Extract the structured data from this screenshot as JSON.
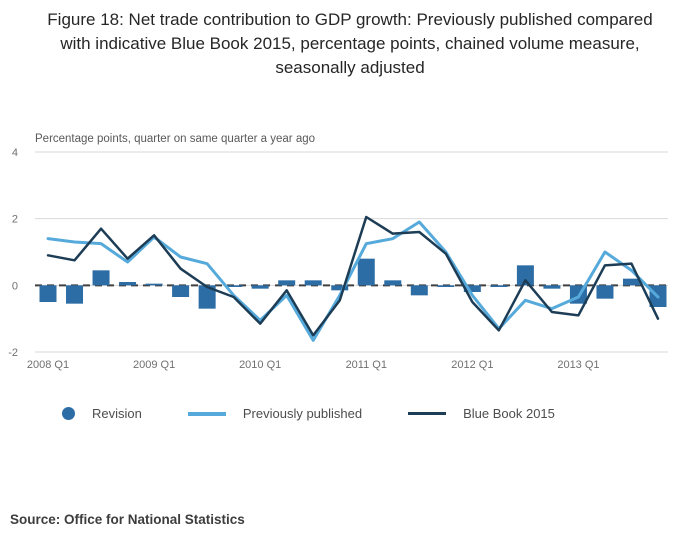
{
  "header": {
    "title": "Figure 18: Net trade contribution to GDP growth: Previously published compared with indicative Blue Book 2015, percentage points, chained volume measure, seasonally adjusted"
  },
  "footer": {
    "source": "Source: Office for National Statistics"
  },
  "chart_data": {
    "type": "combo-bar-line",
    "title": "Figure 18: Net trade contribution to GDP growth: Previously published compared with indicative Blue Book 2015, percentage points, chained volume measure, seasonally adjusted",
    "ylabel": "Percentage points, quarter on same quarter a year ago",
    "categories": [
      "2008 Q1",
      "2008 Q2",
      "2008 Q3",
      "2008 Q4",
      "2009 Q1",
      "2009 Q2",
      "2009 Q3",
      "2009 Q4",
      "2010 Q1",
      "2010 Q2",
      "2010 Q3",
      "2010 Q4",
      "2011 Q1",
      "2011 Q2",
      "2011 Q3",
      "2011 Q4",
      "2012 Q1",
      "2012 Q2",
      "2012 Q3",
      "2012 Q4",
      "2013 Q1",
      "2013 Q2",
      "2013 Q3",
      "2013 Q4"
    ],
    "series": [
      {
        "name": "Revision",
        "type": "bar",
        "color": "#2d6da5",
        "values": [
          -0.5,
          -0.55,
          0.45,
          0.1,
          0.05,
          -0.35,
          -0.7,
          -0.05,
          -0.1,
          0.15,
          0.15,
          -0.15,
          0.8,
          0.15,
          -0.3,
          -0.05,
          -0.2,
          -0.05,
          0.6,
          -0.1,
          -0.55,
          -0.4,
          0.2,
          -0.65
        ]
      },
      {
        "name": "Previously published",
        "type": "line",
        "color": "#56aadb",
        "values": [
          1.4,
          1.3,
          1.25,
          0.7,
          1.45,
          0.85,
          0.65,
          -0.3,
          -1.05,
          -0.3,
          -1.65,
          -0.3,
          1.25,
          1.4,
          1.9,
          1.0,
          -0.3,
          -1.3,
          -0.45,
          -0.7,
          -0.35,
          1.0,
          0.45,
          -0.35
        ]
      },
      {
        "name": "Blue Book 2015",
        "type": "line",
        "color": "#1d3d56",
        "values": [
          0.9,
          0.75,
          1.7,
          0.8,
          1.5,
          0.5,
          -0.05,
          -0.35,
          -1.15,
          -0.15,
          -1.5,
          -0.45,
          2.05,
          1.55,
          1.6,
          0.95,
          -0.5,
          -1.35,
          0.15,
          -0.8,
          -0.9,
          0.6,
          0.65,
          -1.0
        ]
      }
    ],
    "ylim": [
      -2,
      4
    ],
    "yticks": [
      4,
      2,
      0,
      -2
    ],
    "xtick_labels": [
      "2008 Q1",
      "2009 Q1",
      "2010 Q1",
      "2011 Q1",
      "2012 Q1",
      "2013 Q1"
    ],
    "xtick_indices": [
      0,
      4,
      8,
      12,
      16,
      20
    ],
    "zero_line": "dashed",
    "grid": "horizontal",
    "legend_position": "bottom"
  }
}
